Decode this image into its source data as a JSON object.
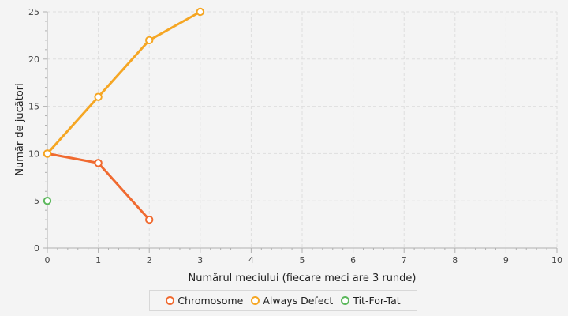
{
  "chart_data": {
    "type": "line",
    "title": "",
    "xlabel": "Numărul meciului (fiecare meci are 3 runde)",
    "ylabel": "Număr de jucători",
    "xlim": [
      0,
      10
    ],
    "ylim": [
      0,
      25
    ],
    "x_ticks": [
      0,
      1,
      2,
      3,
      4,
      5,
      6,
      7,
      8,
      9,
      10
    ],
    "y_ticks": [
      0,
      5,
      10,
      15,
      20,
      25
    ],
    "grid": true,
    "legend_position": "bottom",
    "series": [
      {
        "name": "Chromosome",
        "color": "#f06a30",
        "x": [
          0,
          1,
          2
        ],
        "values": [
          10,
          9,
          3
        ]
      },
      {
        "name": "Always Defect",
        "color": "#f5a623",
        "x": [
          0,
          1,
          2,
          3
        ],
        "values": [
          10,
          16,
          22,
          25
        ]
      },
      {
        "name": "Tit-For-Tat",
        "color": "#5cb85c",
        "x": [
          0
        ],
        "values": [
          5
        ]
      }
    ]
  }
}
